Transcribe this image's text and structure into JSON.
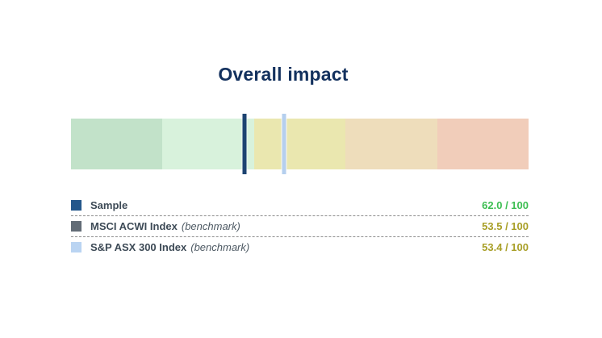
{
  "title": "Overall impact",
  "chart_data": {
    "type": "bullet-scale",
    "title": "Overall impact",
    "scale": {
      "min": 0,
      "max": 100,
      "orientation": "horizontal",
      "high_values_on_left": true,
      "segment_colors": [
        "#c2e2c9",
        "#d8f2dc",
        "#eae7af",
        "#eeddbb",
        "#f1cdba"
      ],
      "segment_width_pct": 20
    },
    "series": [
      {
        "name": "Sample",
        "suffix": "",
        "benchmark": false,
        "value": 62.0,
        "display": "62.0 / 100",
        "marker_color": "#1d4471",
        "swatch_color": "#24578b",
        "value_color": "#3dbe52"
      },
      {
        "name": "MSCI ACWI Index",
        "suffix": "(benchmark)",
        "benchmark": true,
        "value": 53.5,
        "display": "53.5 / 100",
        "marker_color": "#5f6a74",
        "swatch_color": "#626c76",
        "value_color": "#a89f27"
      },
      {
        "name": "S&P ASX 300 Index",
        "suffix": "(benchmark)",
        "benchmark": true,
        "value": 53.4,
        "display": "53.4 / 100",
        "marker_color": "#b5cfee",
        "swatch_color": "#bad4f2",
        "value_color": "#a89f27"
      }
    ],
    "legend_position": "below",
    "grid": false
  }
}
